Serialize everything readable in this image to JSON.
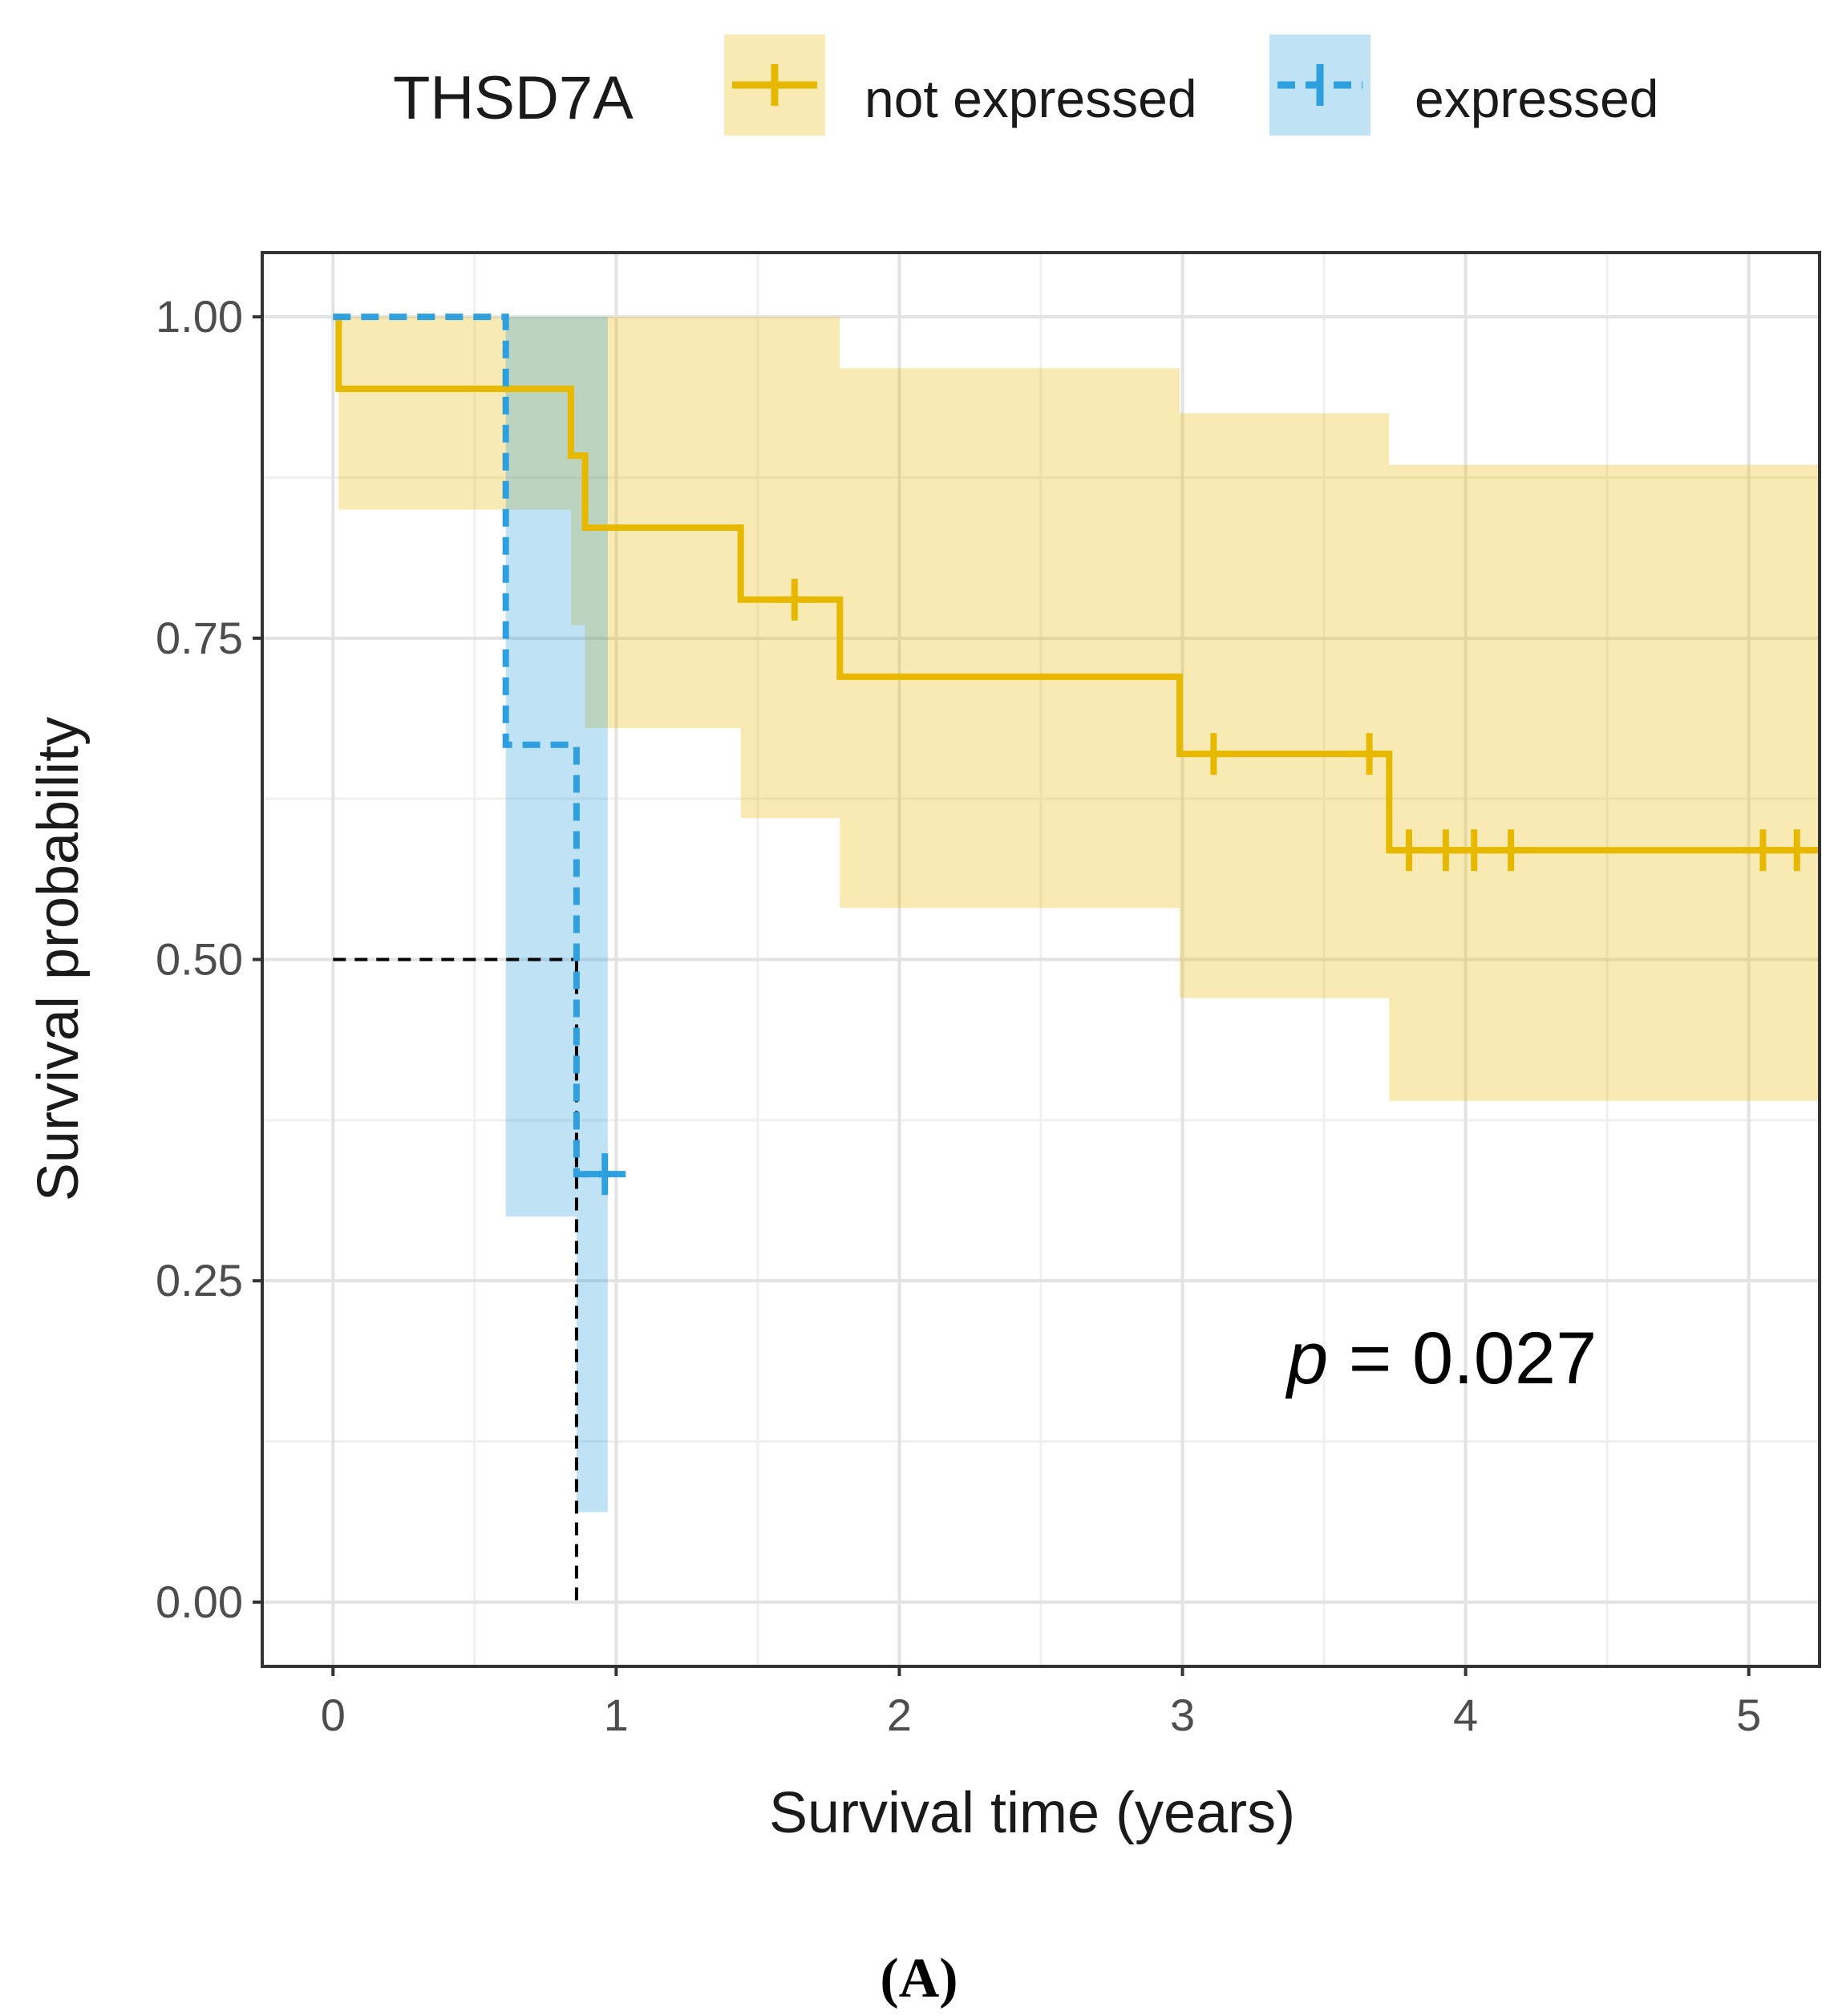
{
  "chart_data": {
    "type": "line",
    "subtype": "kaplan-meier",
    "title": "",
    "xlabel": "Survival time (years)",
    "ylabel": "Survival probability",
    "xlim": [
      -0.25,
      5.25
    ],
    "ylim": [
      -0.05,
      1.05
    ],
    "x_ticks": [
      0,
      1,
      2,
      3,
      4,
      5
    ],
    "x_tick_labels": [
      "0",
      "1",
      "2",
      "3",
      "4",
      "5"
    ],
    "y_ticks": [
      0,
      0.25,
      0.5,
      0.75,
      1.0
    ],
    "y_tick_labels": [
      "0.00",
      "0.25",
      "0.50",
      "0.75",
      "1.00"
    ],
    "x_minor_ticks": [
      0.5,
      1.5,
      2.5,
      3.5,
      4.5
    ],
    "y_minor_ticks": [
      0.125,
      0.375,
      0.625,
      0.875
    ],
    "grid": true,
    "legend": {
      "title": "THSD7A",
      "position": "top",
      "entries": [
        "not expressed",
        "expressed"
      ]
    },
    "annotation": {
      "p_symbol": "p",
      "p_rest": " = 0.027"
    },
    "caption": "(A)",
    "median_line": {
      "y": 0.5,
      "x": 0.86
    },
    "series": [
      {
        "name": "not expressed",
        "color": "#E7B800",
        "ci_color": "#E7B800",
        "linestyle": "solid",
        "steps": [
          {
            "x": 0.0,
            "y": 1.0,
            "lower": 1.0,
            "upper": 1.0
          },
          {
            "x": 0.02,
            "y": 0.944,
            "lower": 0.85,
            "upper": 1.0
          },
          {
            "x": 0.84,
            "y": 0.892,
            "lower": 0.76,
            "upper": 1.0
          },
          {
            "x": 0.89,
            "y": 0.836,
            "lower": 0.68,
            "upper": 1.0
          },
          {
            "x": 1.44,
            "y": 0.78,
            "lower": 0.61,
            "upper": 1.0
          },
          {
            "x": 1.79,
            "y": 0.72,
            "lower": 0.54,
            "upper": 0.96
          },
          {
            "x": 2.99,
            "y": 0.66,
            "lower": 0.47,
            "upper": 0.925
          },
          {
            "x": 3.73,
            "y": 0.585,
            "lower": 0.39,
            "upper": 0.885
          }
        ],
        "end_x": 5.25,
        "censored": [
          {
            "x": 1.63,
            "y": 0.78
          },
          {
            "x": 3.11,
            "y": 0.66
          },
          {
            "x": 3.66,
            "y": 0.66
          },
          {
            "x": 3.8,
            "y": 0.585
          },
          {
            "x": 3.93,
            "y": 0.585
          },
          {
            "x": 4.03,
            "y": 0.585
          },
          {
            "x": 4.16,
            "y": 0.585
          },
          {
            "x": 5.05,
            "y": 0.585
          },
          {
            "x": 5.17,
            "y": 0.585
          }
        ]
      },
      {
        "name": "expressed",
        "color": "#2E9FDF",
        "ci_color": "#2E9FDF",
        "linestyle": "dashed",
        "steps": [
          {
            "x": 0.0,
            "y": 1.0,
            "lower": 1.0,
            "upper": 1.0
          },
          {
            "x": 0.61,
            "y": 0.667,
            "lower": 0.3,
            "upper": 1.0
          },
          {
            "x": 0.86,
            "y": 0.333,
            "lower": 0.07,
            "upper": 1.0
          }
        ],
        "end_x": 0.97,
        "censored": [
          {
            "x": 0.96,
            "y": 0.333
          }
        ]
      }
    ]
  }
}
